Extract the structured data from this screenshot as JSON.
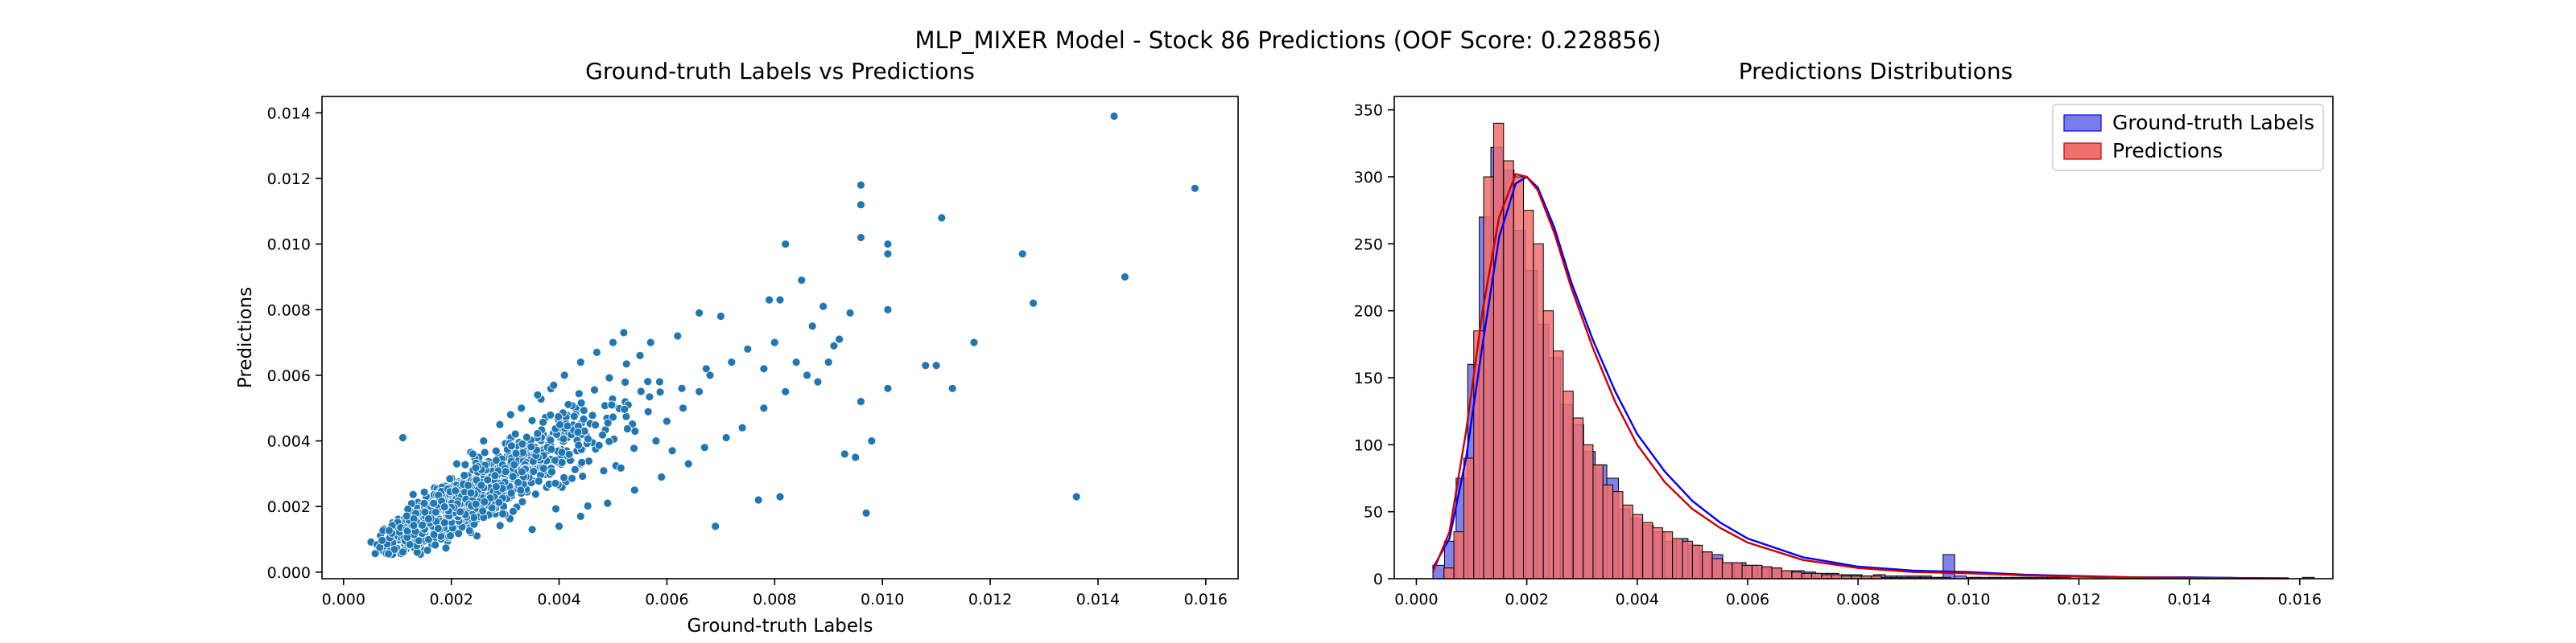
{
  "figure": {
    "suptitle": "MLP_MIXER Model - Stock 86 Predictions (OOF Score: 0.228856)"
  },
  "colors": {
    "scatter": "#1f77b4",
    "truth_fill": "#7b7bea",
    "truth_line": "#0000ff",
    "pred_fill": "#f06e6e",
    "pred_line": "#cc0000"
  },
  "chart_data": [
    {
      "type": "scatter",
      "title": "Ground-truth Labels vs Predictions",
      "xlabel": "Ground-truth Labels",
      "ylabel": "Predictions",
      "xlim": [
        -0.0004,
        0.0166
      ],
      "ylim": [
        -0.0002,
        0.0145
      ],
      "xticks": [
        0.0,
        0.002,
        0.004,
        0.006,
        0.008,
        0.01,
        0.012,
        0.014,
        0.016
      ],
      "xtick_labels": [
        "0.000",
        "0.002",
        "0.004",
        "0.006",
        "0.008",
        "0.010",
        "0.012",
        "0.014",
        "0.016"
      ],
      "yticks": [
        0.0,
        0.002,
        0.004,
        0.006,
        0.008,
        0.01,
        0.012,
        0.014
      ],
      "ytick_labels": [
        "0.000",
        "0.002",
        "0.004",
        "0.006",
        "0.008",
        "0.010",
        "0.012",
        "0.014"
      ],
      "grid": false,
      "points": [
        [
          0.0143,
          0.0139
        ],
        [
          0.0158,
          0.0117
        ],
        [
          0.0096,
          0.0118
        ],
        [
          0.0096,
          0.0112
        ],
        [
          0.0111,
          0.0108
        ],
        [
          0.0096,
          0.0102
        ],
        [
          0.0101,
          0.01
        ],
        [
          0.0101,
          0.0097
        ],
        [
          0.0126,
          0.0097
        ],
        [
          0.0082,
          0.01
        ],
        [
          0.0145,
          0.009
        ],
        [
          0.0128,
          0.0082
        ],
        [
          0.0085,
          0.0089
        ],
        [
          0.0079,
          0.0083
        ],
        [
          0.0081,
          0.0083
        ],
        [
          0.0089,
          0.0081
        ],
        [
          0.0094,
          0.0079
        ],
        [
          0.0101,
          0.008
        ],
        [
          0.0117,
          0.007
        ],
        [
          0.0108,
          0.0063
        ],
        [
          0.011,
          0.0063
        ],
        [
          0.0113,
          0.0056
        ],
        [
          0.0101,
          0.0056
        ],
        [
          0.0096,
          0.0052
        ],
        [
          0.0098,
          0.004
        ],
        [
          0.0093,
          0.0036
        ],
        [
          0.0095,
          0.0035
        ],
        [
          0.0097,
          0.0018
        ],
        [
          0.0136,
          0.0023
        ],
        [
          0.0081,
          0.0023
        ],
        [
          0.0077,
          0.0022
        ],
        [
          0.0069,
          0.0014
        ],
        [
          0.0067,
          0.0038
        ],
        [
          0.0071,
          0.0041
        ],
        [
          0.0074,
          0.0044
        ],
        [
          0.0078,
          0.005
        ],
        [
          0.0082,
          0.0055
        ],
        [
          0.0086,
          0.006
        ],
        [
          0.0088,
          0.0058
        ],
        [
          0.0084,
          0.0064
        ],
        [
          0.009,
          0.0064
        ],
        [
          0.0091,
          0.0069
        ],
        [
          0.0087,
          0.0075
        ],
        [
          0.0092,
          0.0071
        ],
        [
          0.007,
          0.0078
        ],
        [
          0.0066,
          0.0079
        ],
        [
          0.0062,
          0.0072
        ],
        [
          0.0057,
          0.007
        ],
        [
          0.0055,
          0.0066
        ],
        [
          0.0052,
          0.0073
        ],
        [
          0.005,
          0.007
        ],
        [
          0.0047,
          0.0067
        ],
        [
          0.0044,
          0.0064
        ],
        [
          0.0041,
          0.006
        ],
        [
          0.0039,
          0.0057
        ],
        [
          0.0036,
          0.0054
        ],
        [
          0.0033,
          0.005
        ],
        [
          0.0031,
          0.0048
        ],
        [
          0.0029,
          0.0045
        ],
        [
          0.0026,
          0.004
        ],
        [
          0.0024,
          0.0036
        ],
        [
          0.0021,
          0.0033
        ],
        [
          0.0011,
          0.0041
        ],
        [
          0.0058,
          0.004
        ],
        [
          0.0061,
          0.0037
        ],
        [
          0.0064,
          0.0033
        ],
        [
          0.0059,
          0.0029
        ],
        [
          0.0054,
          0.0025
        ],
        [
          0.0049,
          0.0021
        ],
        [
          0.0044,
          0.0017
        ],
        [
          0.004,
          0.0014
        ],
        [
          0.0035,
          0.0013
        ],
        [
          0.006,
          0.0046
        ],
        [
          0.0063,
          0.005
        ],
        [
          0.0066,
          0.0055
        ],
        [
          0.0068,
          0.006
        ],
        [
          0.0072,
          0.0064
        ],
        [
          0.0075,
          0.0068
        ],
        [
          0.008,
          0.007
        ],
        [
          0.0078,
          0.0062
        ]
      ],
      "point_count": 1400
    },
    {
      "type": "histogram",
      "title": "Predictions Distributions",
      "xlim": [
        -0.0004,
        0.0166
      ],
      "ylim": [
        0,
        360
      ],
      "xticks": [
        0.0,
        0.002,
        0.004,
        0.006,
        0.008,
        0.01,
        0.012,
        0.014,
        0.016
      ],
      "xtick_labels": [
        "0.000",
        "0.002",
        "0.004",
        "0.006",
        "0.008",
        "0.010",
        "0.012",
        "0.014",
        "0.016"
      ],
      "yticks": [
        0,
        50,
        100,
        150,
        200,
        250,
        300,
        350
      ],
      "ytick_labels": [
        "0",
        "50",
        "100",
        "150",
        "200",
        "250",
        "300",
        "350"
      ],
      "grid": false,
      "legend": {
        "placement": "top-right",
        "entries": [
          "Ground-truth Labels",
          "Predictions"
        ]
      },
      "series": [
        {
          "name": "Ground-truth Labels",
          "bin_start": 0.0003,
          "bin_width": 0.00021,
          "counts": [
            10,
            28,
            75,
            160,
            270,
            322,
            305,
            260,
            230,
            190,
            165,
            130,
            115,
            95,
            85,
            75,
            52,
            45,
            40,
            35,
            28,
            30,
            25,
            20,
            18,
            12,
            12,
            10,
            8,
            8,
            6,
            6,
            5,
            4,
            4,
            3,
            3,
            2,
            3,
            2,
            2,
            2,
            2,
            1,
            18,
            2,
            1,
            1,
            1,
            1,
            1,
            1,
            1,
            1,
            1,
            0,
            0,
            1,
            0,
            1,
            0,
            0,
            0,
            0,
            0,
            0,
            0,
            0,
            1,
            0,
            0,
            0,
            0,
            0,
            0,
            1
          ]
        },
        {
          "name": "Predictions",
          "bin_start": 0.0005,
          "bin_width": 0.00018,
          "counts": [
            8,
            35,
            90,
            185,
            300,
            340,
            312,
            300,
            275,
            250,
            200,
            170,
            140,
            120,
            100,
            85,
            70,
            65,
            55,
            48,
            42,
            38,
            35,
            30,
            28,
            25,
            20,
            15,
            12,
            12,
            10,
            10,
            9,
            8,
            6,
            5,
            4,
            4,
            3,
            3,
            2,
            2,
            2,
            2,
            1,
            1,
            1,
            1,
            1,
            1,
            1,
            0,
            0,
            1,
            0,
            1,
            0,
            0,
            1
          ]
        }
      ],
      "kde": {
        "x": [
          0.0003,
          0.0006,
          0.0009,
          0.0012,
          0.0015,
          0.0018,
          0.002,
          0.0022,
          0.0025,
          0.0028,
          0.0032,
          0.0036,
          0.004,
          0.0045,
          0.005,
          0.0055,
          0.006,
          0.007,
          0.008,
          0.009,
          0.01,
          0.011,
          0.012,
          0.013,
          0.014,
          0.015,
          0.0158
        ],
        "truth": [
          8,
          30,
          90,
          175,
          255,
          295,
          300,
          292,
          262,
          222,
          178,
          140,
          108,
          80,
          58,
          42,
          30,
          16,
          9,
          6,
          5,
          3,
          2,
          1,
          1,
          0.5,
          0.3
        ],
        "pred": [
          5,
          35,
          110,
          200,
          270,
          302,
          300,
          290,
          258,
          218,
          172,
          132,
          100,
          72,
          52,
          38,
          27,
          14,
          8,
          5,
          4,
          2.5,
          1.5,
          1,
          0.6,
          0.3,
          0.2
        ]
      }
    }
  ]
}
